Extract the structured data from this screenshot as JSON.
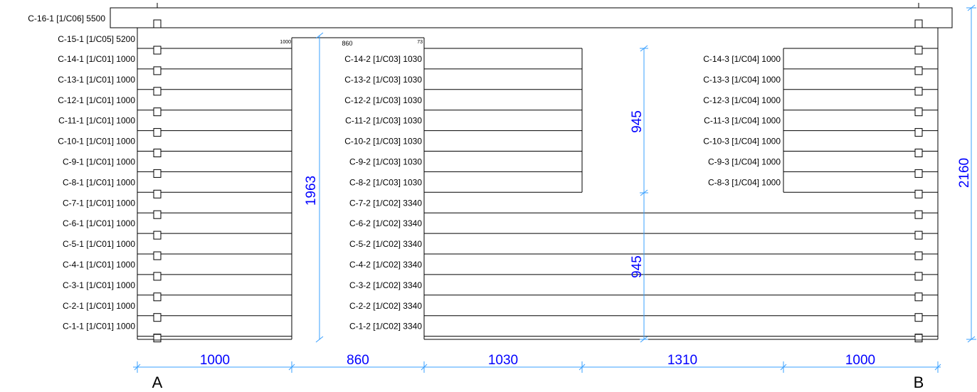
{
  "colors": {
    "line": "#000000",
    "dimension": "#0000ff",
    "dim_line": "#3aa0ff",
    "background": "#ffffff"
  },
  "top_log": {
    "label": "C-16-1 [1/C06] 5500"
  },
  "second_log": {
    "label": "C-15-1 [1/C05] 5200",
    "top_dims": [
      "1000",
      "860",
      "73"
    ]
  },
  "left_logs": [
    "C-14-1 [1/C01] 1000",
    "C-13-1 [1/C01] 1000",
    "C-12-1 [1/C01] 1000",
    "C-11-1 [1/C01] 1000",
    "C-10-1 [1/C01] 1000",
    "C-9-1 [1/C01] 1000",
    "C-8-1 [1/C01] 1000",
    "C-7-1 [1/C01] 1000",
    "C-6-1 [1/C01] 1000",
    "C-5-1 [1/C01] 1000",
    "C-4-1 [1/C01] 1000",
    "C-3-1 [1/C01] 1000",
    "C-2-1 [1/C01] 1000",
    "C-1-1 [1/C01] 1000"
  ],
  "middle_upper_logs": [
    "C-14-2 [1/C03] 1030",
    "C-13-2 [1/C03] 1030",
    "C-12-2 [1/C03] 1030",
    "C-11-2 [1/C03] 1030",
    "C-10-2 [1/C03] 1030",
    "C-9-2 [1/C03] 1030",
    "C-8-2 [1/C03] 1030"
  ],
  "middle_lower_logs": [
    "C-7-2 [1/C02] 3340",
    "C-6-2 [1/C02] 3340",
    "C-5-2 [1/C02] 3340",
    "C-4-2 [1/C02] 3340",
    "C-3-2 [1/C02] 3340",
    "C-2-2 [1/C02] 3340",
    "C-1-2 [1/C02] 3340"
  ],
  "right_logs": [
    "C-14-3 [1/C04] 1000",
    "C-13-3 [1/C04] 1000",
    "C-12-3 [1/C04] 1000",
    "C-11-3 [1/C04] 1000",
    "C-10-3 [1/C04] 1000",
    "C-9-3 [1/C04] 1000",
    "C-8-3 [1/C04] 1000"
  ],
  "dimensions": {
    "bottom": [
      "1000",
      "860",
      "1030",
      "1310",
      "1000"
    ],
    "door_height": "1963",
    "window_height": "945",
    "lower_height": "945",
    "total_height": "2160"
  },
  "axis_labels": {
    "left": "A",
    "right": "B"
  }
}
